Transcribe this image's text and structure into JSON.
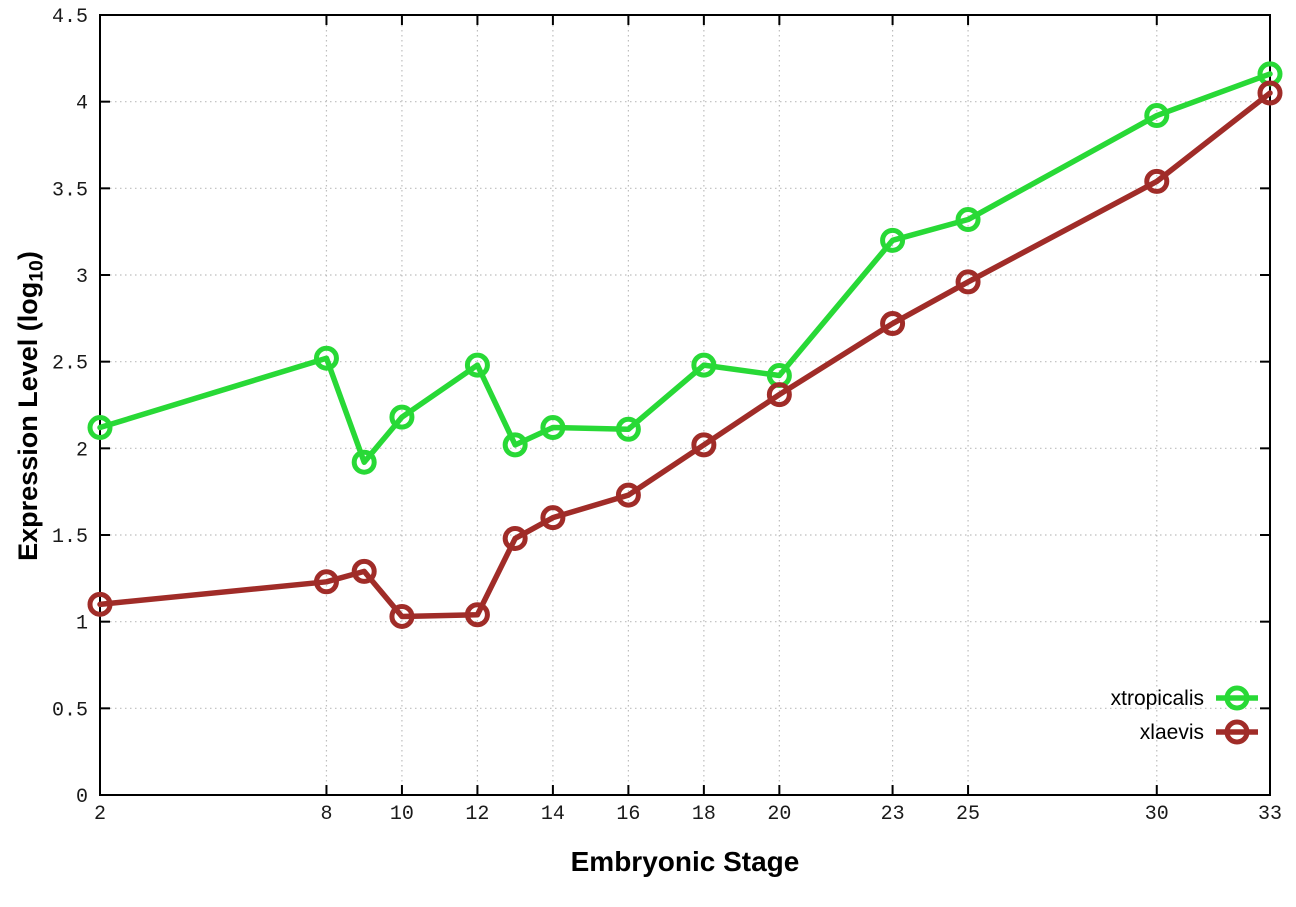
{
  "chart_data": {
    "type": "line",
    "title": "",
    "xlabel": "Embryonic Stage",
    "ylabel": {
      "pre": "Expression Level (log",
      "sub": "10",
      "post": ")"
    },
    "x": [
      2,
      8,
      9,
      10,
      12,
      13,
      14,
      16,
      18,
      20,
      23,
      25,
      30,
      33
    ],
    "series": [
      {
        "name": "xtropicalis",
        "color": "#28d936",
        "marker": "open-circle",
        "values": [
          2.12,
          2.52,
          1.92,
          2.18,
          2.48,
          2.02,
          2.12,
          2.11,
          2.48,
          2.42,
          3.2,
          3.32,
          3.92,
          4.16
        ]
      },
      {
        "name": "xlaevis",
        "color": "#a02c28",
        "marker": "open-circle",
        "values": [
          1.1,
          1.23,
          1.29,
          1.03,
          1.04,
          1.48,
          1.6,
          1.73,
          2.02,
          2.31,
          2.72,
          2.96,
          3.54,
          4.05
        ]
      }
    ],
    "xticks": [
      2,
      8,
      10,
      12,
      14,
      16,
      18,
      20,
      23,
      25,
      30,
      33
    ],
    "yticks": [
      0,
      0.5,
      1,
      1.5,
      2,
      2.5,
      3,
      3.5,
      4,
      4.5
    ],
    "xlim": [
      2,
      33
    ],
    "ylim": [
      0,
      4.5
    ],
    "grid": true,
    "legend_position": "inside-bottom-right"
  },
  "style": {
    "background": "#ffffff",
    "border_color": "#000000",
    "grid_color": "#bdbdbd",
    "text_color": "#000000"
  }
}
